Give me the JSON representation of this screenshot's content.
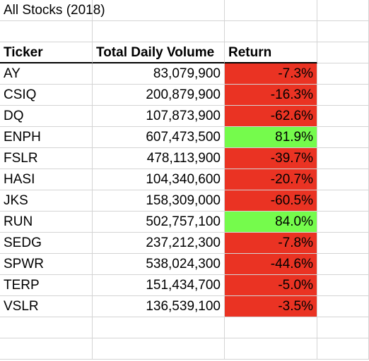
{
  "title": "All Stocks (2018)",
  "headers": {
    "ticker": "Ticker",
    "volume": "Total Daily Volume",
    "return": "Return"
  },
  "colors": {
    "negative": "#ea3323",
    "positive": "#75fb4c"
  },
  "rows": [
    {
      "ticker": "AY",
      "volume": "83,079,900",
      "return": "-7.3%",
      "sign": "neg"
    },
    {
      "ticker": "CSIQ",
      "volume": "200,879,900",
      "return": "-16.3%",
      "sign": "neg"
    },
    {
      "ticker": "DQ",
      "volume": "107,873,900",
      "return": "-62.6%",
      "sign": "neg"
    },
    {
      "ticker": "ENPH",
      "volume": "607,473,500",
      "return": "81.9%",
      "sign": "pos"
    },
    {
      "ticker": "FSLR",
      "volume": "478,113,900",
      "return": "-39.7%",
      "sign": "neg"
    },
    {
      "ticker": "HASI",
      "volume": "104,340,600",
      "return": "-20.7%",
      "sign": "neg"
    },
    {
      "ticker": "JKS",
      "volume": "158,309,000",
      "return": "-60.5%",
      "sign": "neg"
    },
    {
      "ticker": "RUN",
      "volume": "502,757,100",
      "return": "84.0%",
      "sign": "pos"
    },
    {
      "ticker": "SEDG",
      "volume": "237,212,300",
      "return": "-7.8%",
      "sign": "neg"
    },
    {
      "ticker": "SPWR",
      "volume": "538,024,300",
      "return": "-44.6%",
      "sign": "neg"
    },
    {
      "ticker": "TERP",
      "volume": "151,434,700",
      "return": "-5.0%",
      "sign": "neg"
    },
    {
      "ticker": "VSLR",
      "volume": "136,539,100",
      "return": "-3.5%",
      "sign": "neg"
    }
  ]
}
